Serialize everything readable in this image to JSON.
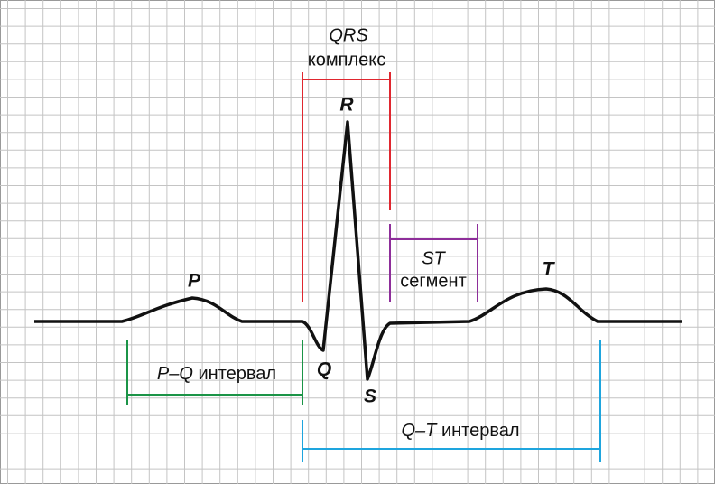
{
  "waves": {
    "p": "P",
    "q": "Q",
    "r": "R",
    "s": "S",
    "t": "T"
  },
  "qrs": {
    "name": "QRS",
    "text": "комплекс"
  },
  "st": {
    "name": "ST",
    "text": "сегмент"
  },
  "pq": {
    "name": "P–Q",
    "text": "интервал"
  },
  "qt": {
    "name": "Q–T",
    "text": "интервал"
  }
}
